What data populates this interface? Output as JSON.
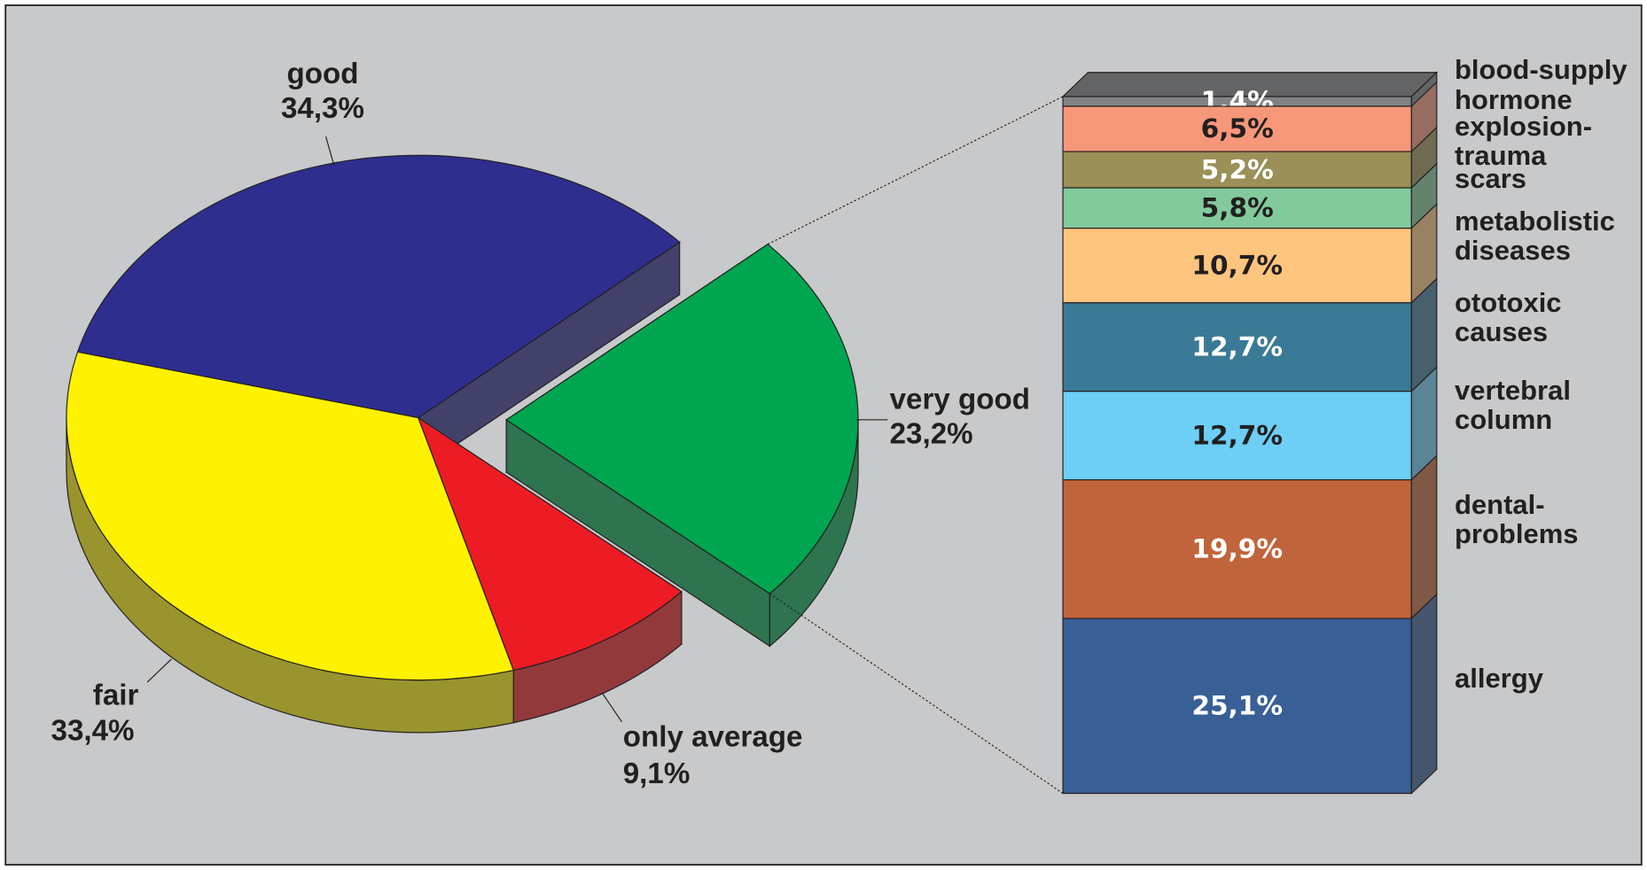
{
  "chart_data": [
    {
      "type": "pie",
      "categories": [
        "very good",
        "only average",
        "fair",
        "good"
      ],
      "values": [
        23.2,
        9.1,
        33.4,
        34.3
      ],
      "value_labels": [
        "23,2%",
        "9,1%",
        "33,4%",
        "34,3%"
      ],
      "colors": [
        "#00a64f",
        "#ed1c24",
        "#fff200",
        "#2e2e8f"
      ],
      "exploded": "very good"
    },
    {
      "type": "bar",
      "stacked": true,
      "categories": [
        "blood-supply",
        "hormone",
        "explosion-\ntrauma",
        "scars",
        "metabolistic\ndiseases",
        "ototoxic\ncauses",
        "vertebral\ncolumn",
        "dental-\nproblems",
        "allergy"
      ],
      "values": [
        1.4,
        6.5,
        5.2,
        5.8,
        10.7,
        12.7,
        12.7,
        19.9,
        25.1
      ],
      "value_labels": [
        "1,4%",
        "6,5%",
        "5,2%",
        "5,8%",
        "10,7%",
        "12,7%",
        "12,7%",
        "19,9%",
        "25,1%"
      ],
      "colors": [
        "#808285",
        "#f79779",
        "#9a9058",
        "#82ca9c",
        "#fec57f",
        "#3b7a96",
        "#6dcff6",
        "#c0643b",
        "#385f96"
      ]
    }
  ]
}
